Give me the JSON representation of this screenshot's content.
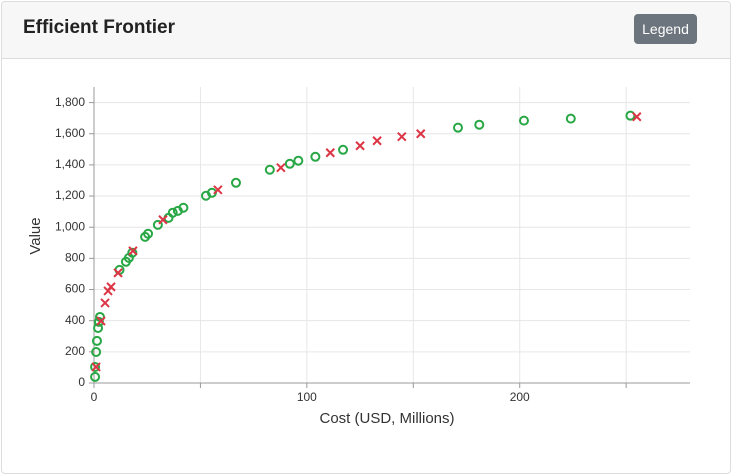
{
  "header": {
    "title": "Efficient Frontier",
    "button": "Legend"
  },
  "chart_data": {
    "type": "scatter",
    "x_label": "Cost (USD, Millions)",
    "y_label": "Value",
    "xlim": [
      0,
      280
    ],
    "ylim": [
      0,
      1900
    ],
    "xticks": [
      0,
      100,
      200
    ],
    "minor_xticks": [
      50,
      150,
      250
    ],
    "yticks": [
      0,
      200,
      400,
      600,
      800,
      {
        "value": 1000,
        "label": "1,000"
      },
      {
        "value": 1200,
        "label": "1,200"
      },
      {
        "value": 1400,
        "label": "1,400"
      },
      {
        "value": 1600,
        "label": "1,600"
      },
      {
        "value": 1800,
        "label": "1,800"
      }
    ],
    "grid": true,
    "series": [
      {
        "marker": "circle",
        "color": "#28a745",
        "x": [
          0.5,
          0.5,
          1,
          1.4,
          1.9,
          2.3,
          2.8,
          12,
          15,
          16.4,
          18,
          24,
          25.4,
          30,
          35,
          37,
          39.4,
          42,
          52.6,
          55.4,
          66.7,
          82.6,
          92,
          96,
          104,
          117,
          171,
          181,
          202,
          224,
          252
        ],
        "values": [
          39,
          103,
          199,
          270,
          353,
          392,
          424,
          726,
          778,
          803,
          836,
          938,
          958,
          1015,
          1060,
          1093,
          1105,
          1125,
          1202,
          1221,
          1285,
          1369,
          1407,
          1427,
          1452,
          1497,
          1639,
          1658,
          1684,
          1697,
          1716
        ]
      },
      {
        "marker": "cross",
        "color": "#dc3545",
        "x": [
          1,
          3.3,
          5.2,
          6.6,
          8,
          11.3,
          18.3,
          32.4,
          58.2,
          87.8,
          111,
          125,
          133,
          144.6,
          153.5,
          255
        ],
        "values": [
          103,
          398,
          514,
          591,
          617,
          707,
          848,
          1048,
          1240,
          1382,
          1478,
          1523,
          1555,
          1581,
          1600,
          1709
        ]
      }
    ]
  }
}
